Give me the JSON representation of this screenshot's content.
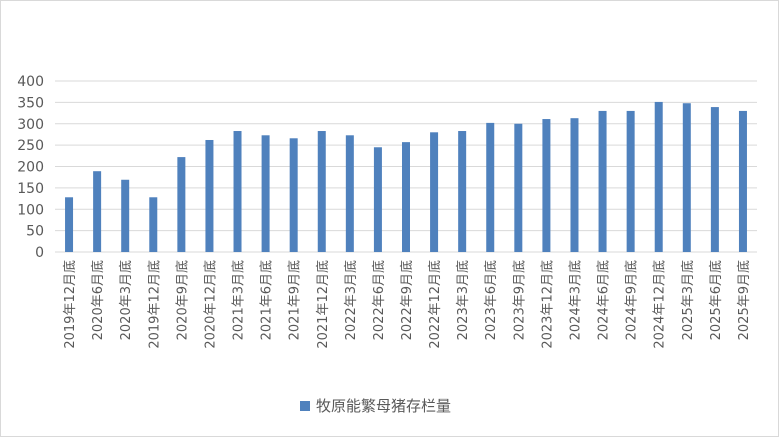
{
  "chart_data": {
    "type": "bar",
    "title": "",
    "xlabel": "",
    "ylabel": "",
    "ylim": [
      0,
      400
    ],
    "yticks": [
      0,
      50,
      100,
      150,
      200,
      250,
      300,
      350,
      400
    ],
    "grid": true,
    "legend_position": "bottom",
    "categories": [
      "2019年12月底",
      "2020年6月底",
      "2020年3月底",
      "2019年12月底",
      "2020年9月底",
      "2020年12月底",
      "2021年3月底",
      "2021年6月底",
      "2021年9月底",
      "2021年12月底",
      "2022年3月底",
      "2022年6月底",
      "2022年9月底",
      "2022年12月底",
      "2023年3月底",
      "2023年6月底",
      "2023年9月底",
      "2023年12月底",
      "2024年3月底",
      "2024年6月底",
      "2024年9月底",
      "2024年12月底",
      "2025年3月底",
      "2025年6月底",
      "2025年9月底"
    ],
    "series": [
      {
        "name": "牧原能繁母猪存栏量",
        "color": "#4f81bd",
        "values": [
          128,
          189,
          169,
          128,
          222,
          262,
          283,
          273,
          266,
          283,
          273,
          245,
          257,
          280,
          283,
          302,
          300,
          311,
          313,
          330,
          330,
          351,
          348,
          339,
          330
        ]
      }
    ]
  }
}
